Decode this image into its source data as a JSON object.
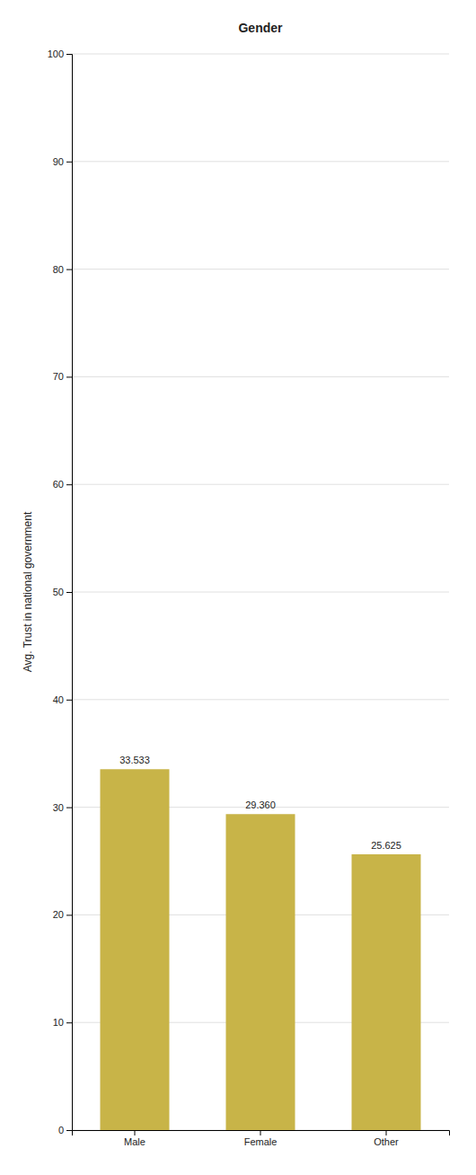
{
  "chart_data": {
    "type": "bar",
    "title": "Gender",
    "categories": [
      "Male",
      "Female",
      "Other"
    ],
    "values": [
      33.533,
      29.36,
      25.625
    ],
    "value_labels": [
      "33.533",
      "29.360",
      "25.625"
    ],
    "data_labels": true,
    "color": "#C8B448",
    "ylabel": "Avg. Trust in national government",
    "ylim": [
      0,
      100
    ],
    "yticks": [
      0,
      10,
      20,
      30,
      40,
      50,
      60,
      70,
      80,
      90,
      100
    ],
    "grid": true
  }
}
